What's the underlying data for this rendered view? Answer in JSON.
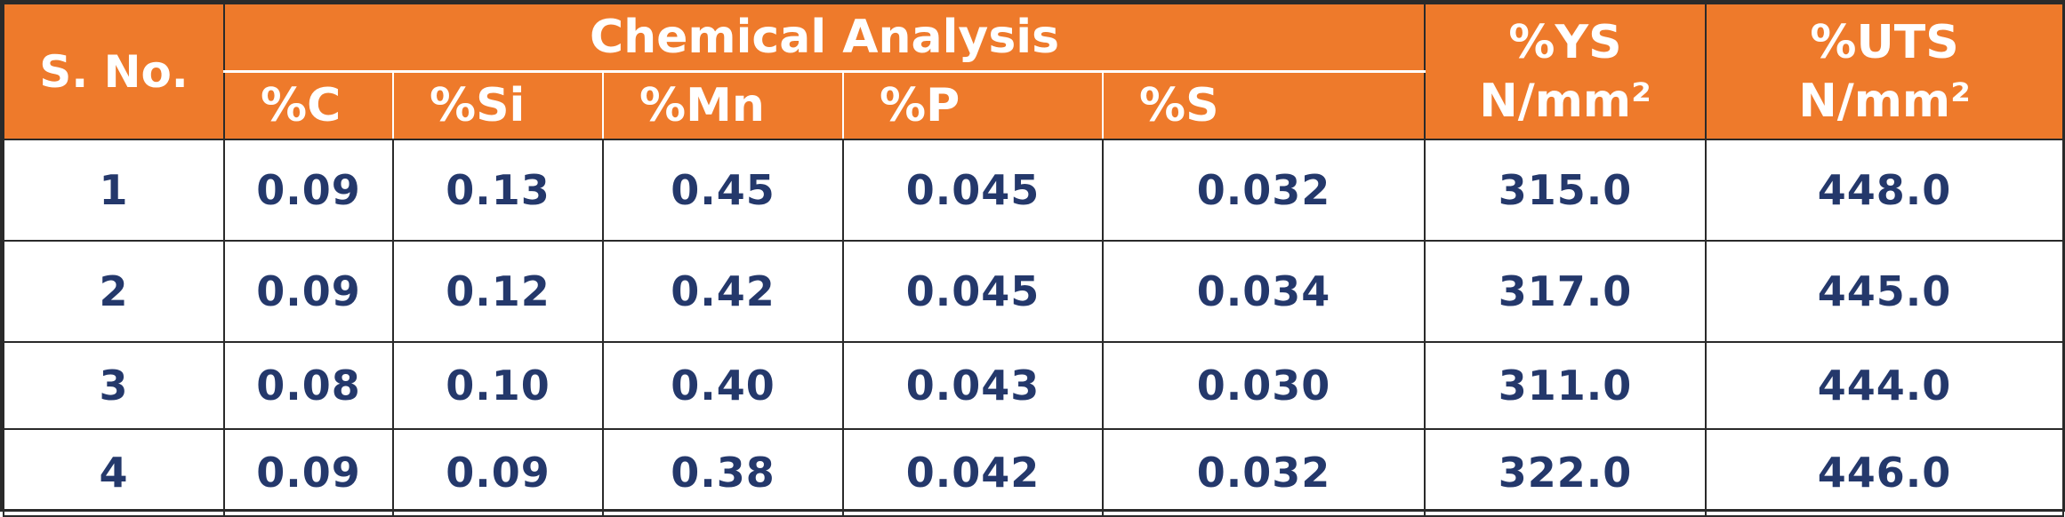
{
  "table": {
    "headers": {
      "sno": "S. No.",
      "group": "Chemical Analysis",
      "elements": [
        "%C",
        "%Si",
        "%Mn",
        "%P",
        "%S"
      ],
      "ys_line1": "%YS",
      "ys_line2": "N/mm²",
      "uts_line1": "%UTS",
      "uts_line2": "N/mm²"
    },
    "rows": [
      [
        "1",
        "0.09",
        "0.13",
        "0.45",
        "0.045",
        "0.032",
        "315.0",
        "448.0"
      ],
      [
        "2",
        "0.09",
        "0.12",
        "0.42",
        "0.045",
        "0.034",
        "317.0",
        "445.0"
      ],
      [
        "3",
        "0.08",
        "0.10",
        "0.40",
        "0.043",
        "0.030",
        "311.0",
        "444.0"
      ],
      [
        "4",
        "0.09",
        "0.09",
        "0.38",
        "0.042",
        "0.032",
        "322.0",
        "446.0"
      ]
    ]
  },
  "colors": {
    "header_bg": "#ee7a2b",
    "header_text": "#ffffff",
    "body_text": "#24386b",
    "border": "#2a2a2a"
  }
}
